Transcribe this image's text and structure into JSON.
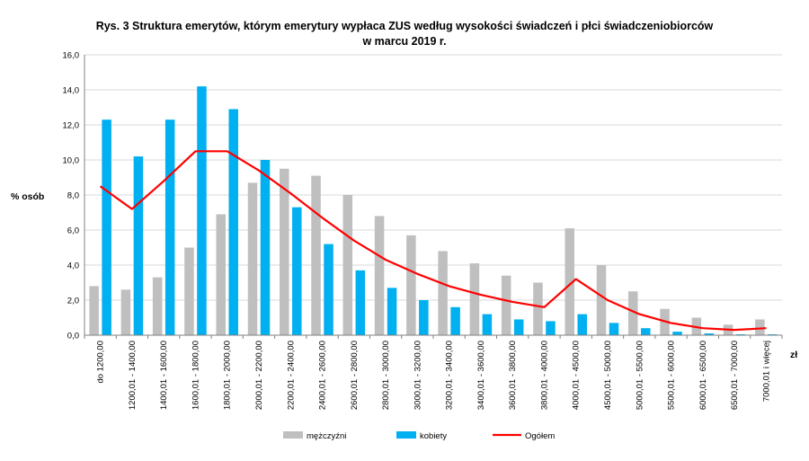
{
  "chart_data": {
    "type": "bar",
    "title_line1": "Rys. 3 Struktura emerytów, którym emerytury wypłaca ZUS według wysokości świadczeń i płci świadczeniobiorców",
    "title_line2": "w marcu 2019 r.",
    "ylabel": "% osób",
    "xunit": "zł",
    "ylim": [
      0,
      16
    ],
    "yticks": [
      "0,0",
      "2,0",
      "4,0",
      "6,0",
      "8,0",
      "10,0",
      "12,0",
      "14,0",
      "16,0"
    ],
    "grid": true,
    "legend_position": "bottom",
    "categories": [
      "do  1200,00",
      "1200,01 - 1400,00",
      "1400,01 - 1600,00",
      "1600,01 - 1800,00",
      "1800,01 - 2000,00",
      "2000,01 - 2200,00",
      "2200,01 - 2400,00",
      "2400,01 - 2600,00",
      "2600,01 - 2800,00",
      "2800,01 - 3000,00",
      "3000,01 - 3200,00",
      "3200,01 - 3400,00",
      "3400,01 - 3600,00",
      "3600,01 - 3800,00",
      "3800,01 - 4000,00",
      "4000,01 - 4500,00",
      "4500,01 - 5000,00",
      "5000,01 - 5500,00",
      "5500,01 - 6000,00",
      "6000,01 - 6500,00",
      "6500,01 - 7000,00",
      "7000,01 i więcej"
    ],
    "series": [
      {
        "name": "mężczyźni",
        "kind": "bar",
        "color": "#bfbfbf",
        "values": [
          2.8,
          2.6,
          3.3,
          5.0,
          6.9,
          8.7,
          9.5,
          9.1,
          8.0,
          6.8,
          5.7,
          4.8,
          4.1,
          3.4,
          3.0,
          6.1,
          4.0,
          2.5,
          1.5,
          1.0,
          0.6,
          0.9
        ]
      },
      {
        "name": "kobiety",
        "kind": "bar",
        "color": "#00b0f0",
        "values": [
          12.3,
          10.2,
          12.3,
          14.2,
          12.9,
          10.0,
          7.3,
          5.2,
          3.7,
          2.7,
          2.0,
          1.6,
          1.2,
          0.9,
          0.8,
          1.2,
          0.7,
          0.4,
          0.2,
          0.1,
          0.05,
          0.05
        ]
      },
      {
        "name": "Ogółem",
        "kind": "line",
        "color": "#ff0000",
        "values": [
          8.5,
          7.2,
          8.8,
          10.5,
          10.5,
          9.4,
          8.1,
          6.7,
          5.4,
          4.3,
          3.5,
          2.8,
          2.3,
          1.9,
          1.6,
          3.2,
          2.0,
          1.2,
          0.7,
          0.4,
          0.3,
          0.4
        ]
      }
    ]
  }
}
